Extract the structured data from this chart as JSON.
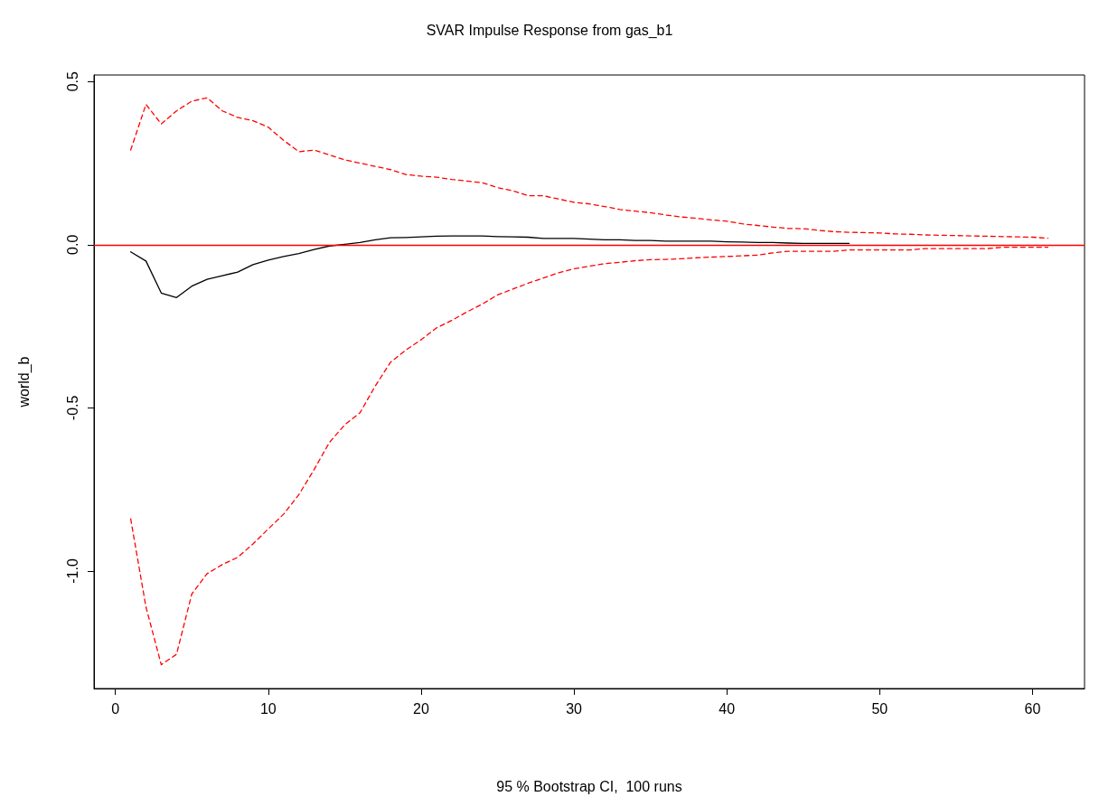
{
  "chart_data": {
    "type": "line",
    "title": "SVAR Impulse Response from gas_b1",
    "xlabel": "95 % Bootstrap CI,  100 runs",
    "ylabel": "world_b",
    "xlim": [
      -1.4,
      63.4
    ],
    "ylim": [
      -1.36,
      0.52
    ],
    "xticks": [
      0,
      10,
      20,
      30,
      40,
      50,
      60
    ],
    "yticks": [
      {
        "value": -1,
        "label": "-1.0"
      },
      {
        "value": -0.5,
        "label": "-0.5"
      },
      {
        "value": 0,
        "label": "0.0"
      },
      {
        "value": 0.5,
        "label": "0.5"
      }
    ],
    "grid": false,
    "marker": "none",
    "ref_lines": [
      {
        "axis": "y",
        "value": 0,
        "color": "#ff0000",
        "line_style": "solid"
      }
    ],
    "series": [
      {
        "color": "#000000",
        "line_style": "solid",
        "x": [
          1,
          2,
          3,
          4,
          5,
          6,
          7,
          8,
          9,
          10,
          11,
          12,
          13,
          14,
          15,
          16,
          17,
          18,
          19,
          20,
          21,
          22,
          23,
          24,
          25,
          26,
          27,
          28,
          29,
          30,
          31,
          32,
          33,
          34,
          35,
          36,
          37,
          38,
          39,
          40,
          41,
          42,
          43,
          44,
          45,
          46,
          47,
          48
        ],
        "values": [
          -0.022,
          -0.05,
          -0.148,
          -0.162,
          -0.127,
          -0.106,
          -0.095,
          -0.084,
          -0.061,
          -0.047,
          -0.036,
          -0.027,
          -0.015,
          -0.004,
          0.001,
          0.007,
          0.015,
          0.021,
          0.022,
          0.024,
          0.026,
          0.027,
          0.027,
          0.027,
          0.025,
          0.024,
          0.023,
          0.019,
          0.019,
          0.019,
          0.017,
          0.015,
          0.015,
          0.013,
          0.013,
          0.011,
          0.011,
          0.011,
          0.011,
          0.009,
          0.008,
          0.007,
          0.007,
          0.005,
          0.004,
          0.004,
          0.004,
          0.004
        ]
      },
      {
        "color": "#ff0000",
        "line_style": "dashed",
        "x": [
          1,
          2,
          3,
          4,
          5,
          6,
          7,
          8,
          9,
          10,
          11,
          12,
          13,
          14,
          15,
          16,
          17,
          18,
          19,
          20,
          21,
          22,
          23,
          24,
          25,
          26,
          27,
          28,
          29,
          30,
          31,
          32,
          33,
          34,
          35,
          36,
          37,
          38,
          39,
          40,
          41,
          42,
          43,
          44,
          45,
          46,
          47,
          48,
          49,
          50,
          51,
          52,
          53,
          54,
          55,
          56,
          57,
          58,
          59,
          60,
          61
        ],
        "values": [
          0.29,
          0.43,
          0.37,
          0.41,
          0.44,
          0.45,
          0.41,
          0.39,
          0.38,
          0.36,
          0.32,
          0.285,
          0.29,
          0.275,
          0.26,
          0.25,
          0.24,
          0.23,
          0.215,
          0.21,
          0.207,
          0.2,
          0.195,
          0.19,
          0.175,
          0.165,
          0.15,
          0.15,
          0.14,
          0.13,
          0.125,
          0.117,
          0.108,
          0.103,
          0.098,
          0.091,
          0.085,
          0.081,
          0.076,
          0.072,
          0.064,
          0.059,
          0.054,
          0.05,
          0.049,
          0.044,
          0.04,
          0.038,
          0.037,
          0.036,
          0.033,
          0.032,
          0.03,
          0.029,
          0.028,
          0.027,
          0.026,
          0.025,
          0.024,
          0.023,
          0.02
        ]
      },
      {
        "color": "#ff0000",
        "line_style": "dashed",
        "x": [
          1,
          2,
          3,
          4,
          5,
          6,
          7,
          8,
          9,
          10,
          11,
          12,
          13,
          14,
          15,
          16,
          17,
          18,
          19,
          20,
          21,
          22,
          23,
          24,
          25,
          26,
          27,
          28,
          29,
          30,
          31,
          32,
          33,
          34,
          35,
          36,
          37,
          38,
          39,
          40,
          41,
          42,
          43,
          44,
          45,
          46,
          47,
          48,
          49,
          50,
          51,
          52,
          53,
          54,
          55,
          56,
          57,
          58,
          59,
          60,
          61
        ],
        "values": [
          -0.84,
          -1.11,
          -1.287,
          -1.255,
          -1.07,
          -1.008,
          -0.98,
          -0.958,
          -0.917,
          -0.871,
          -0.826,
          -0.766,
          -0.689,
          -0.606,
          -0.552,
          -0.515,
          -0.433,
          -0.36,
          -0.323,
          -0.291,
          -0.255,
          -0.232,
          -0.206,
          -0.182,
          -0.154,
          -0.136,
          -0.118,
          -0.102,
          -0.086,
          -0.074,
          -0.066,
          -0.058,
          -0.054,
          -0.049,
          -0.046,
          -0.045,
          -0.043,
          -0.04,
          -0.038,
          -0.036,
          -0.034,
          -0.032,
          -0.025,
          -0.02,
          -0.02,
          -0.02,
          -0.02,
          -0.016,
          -0.016,
          -0.016,
          -0.016,
          -0.016,
          -0.012,
          -0.012,
          -0.012,
          -0.012,
          -0.012,
          -0.008,
          -0.008,
          -0.008,
          -0.008
        ]
      }
    ]
  }
}
